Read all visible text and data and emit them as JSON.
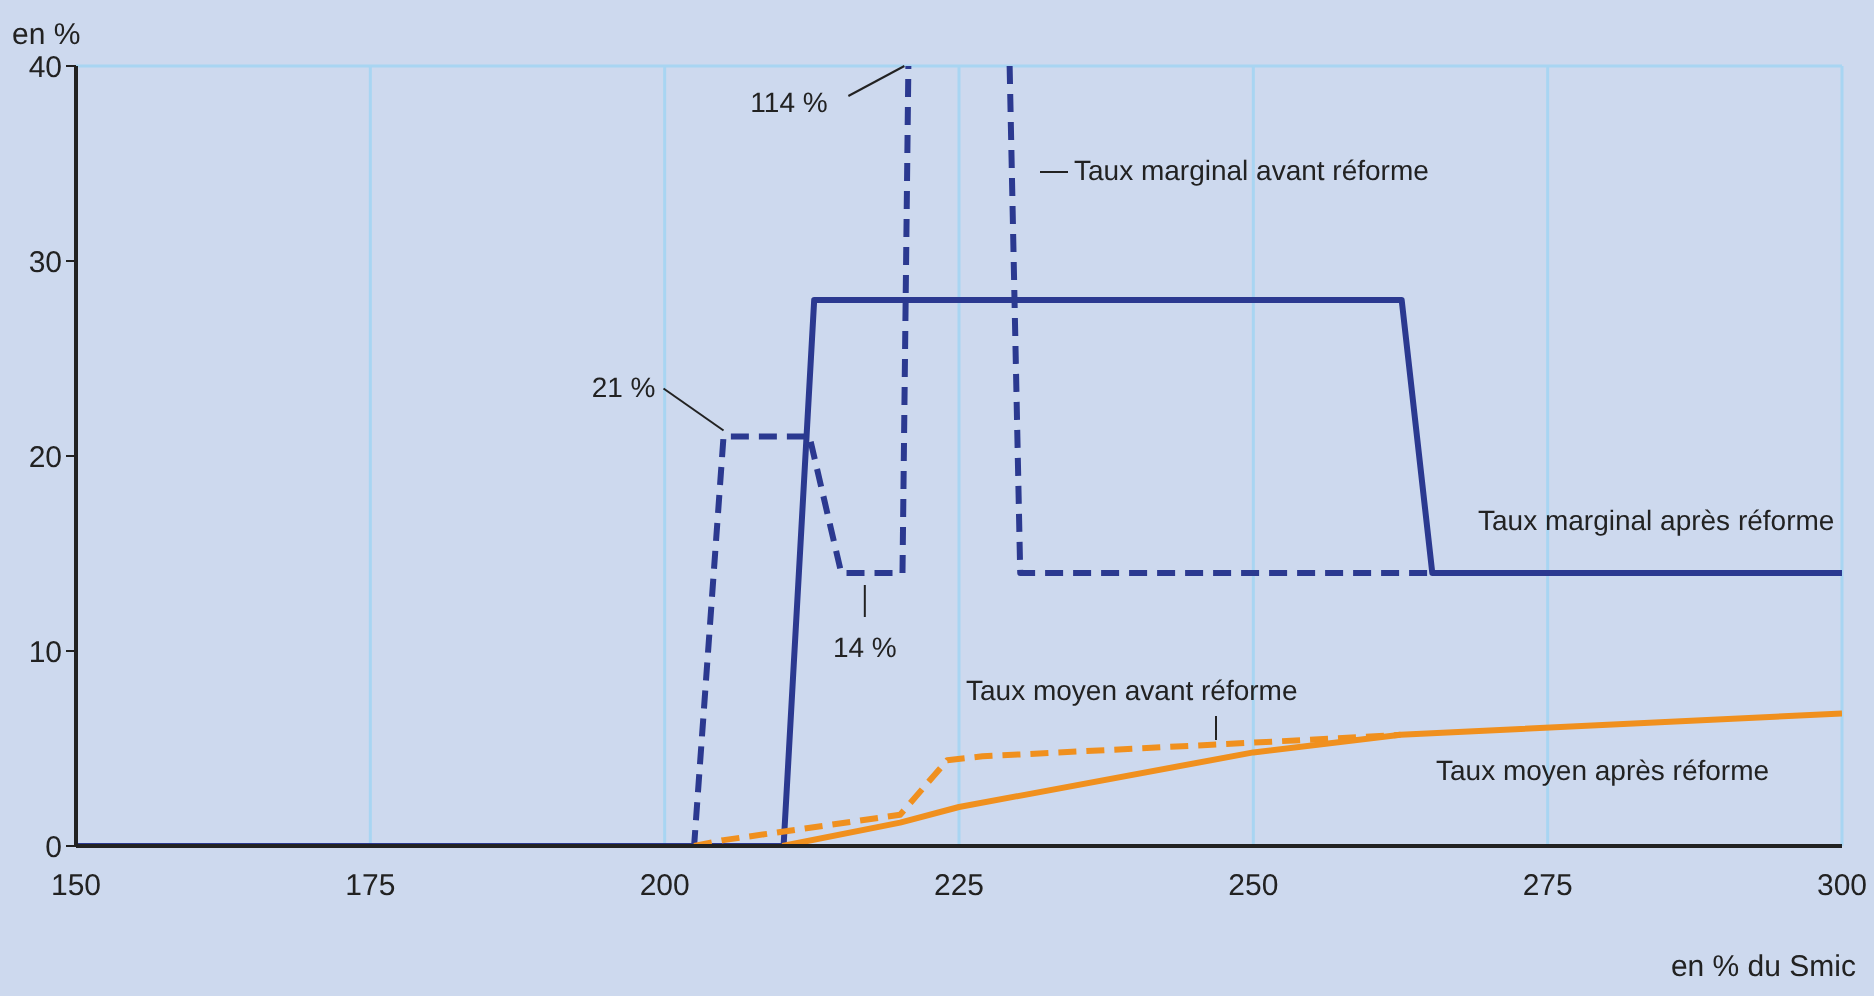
{
  "chart_data": {
    "type": "line",
    "ylabel": "en %",
    "xlabel": "en % du Smic",
    "xlim": [
      150,
      300
    ],
    "xticks": [
      150,
      175,
      200,
      225,
      250,
      275,
      300
    ],
    "ylim": [
      0,
      40
    ],
    "yticks": [
      0,
      10,
      20,
      30,
      40
    ],
    "grid": true,
    "series": [
      {
        "name": "Taux marginal avant réforme",
        "color": "#2b3990",
        "line_style": "dashed",
        "x": [
          150,
          202.5,
          205,
          212.3,
          215,
          220.2,
          220.7,
          225,
          229.3,
          230.2,
          300
        ],
        "values": [
          0,
          0,
          21,
          21,
          14,
          14,
          40,
          null,
          40,
          14,
          14
        ]
      },
      {
        "name": "Taux marginal après réforme",
        "color": "#2b3990",
        "line_style": "solid",
        "x": [
          150,
          210.1,
          212.7,
          262.6,
          265.2,
          300
        ],
        "values": [
          0,
          0,
          28,
          28,
          14,
          14
        ]
      },
      {
        "name": "Taux moyen avant réforme",
        "color": "#f0901e",
        "line_style": "dashed",
        "x": [
          202.5,
          205,
          220,
          224,
          227,
          250,
          262.5
        ],
        "values": [
          0,
          0.3,
          1.6,
          4.4,
          4.6,
          5.3,
          5.7
        ]
      },
      {
        "name": "Taux moyen après réforme",
        "color": "#f0901e",
        "line_style": "solid",
        "x": [
          210,
          220,
          225,
          250,
          262.5,
          300
        ],
        "values": [
          0,
          1.2,
          2.0,
          4.8,
          5.7,
          6.8
        ]
      }
    ],
    "annotations": [
      {
        "text": "114 %",
        "x": 220.7,
        "y": 40
      },
      {
        "text": "21 %",
        "x": 205,
        "y": 21
      },
      {
        "text": "14 %",
        "x": 217,
        "y": 14
      }
    ]
  }
}
